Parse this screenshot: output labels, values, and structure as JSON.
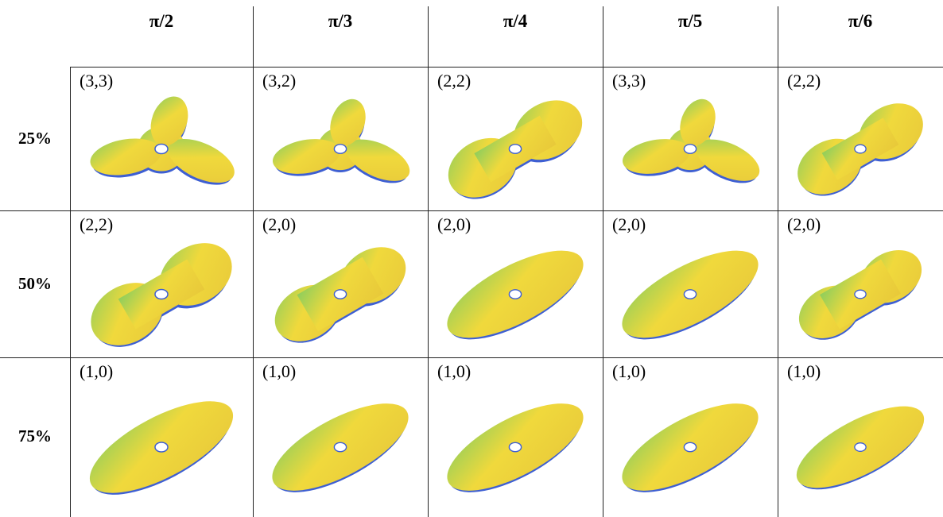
{
  "table": {
    "columns": [
      "π/2",
      "π/3",
      "π/4",
      "π/5",
      "π/6"
    ],
    "rows": [
      {
        "label": "25%",
        "cells": [
          "(3,3)",
          "(3,2)",
          "(2,2)",
          "(3,3)",
          "(2,2)"
        ]
      },
      {
        "label": "50%",
        "cells": [
          "(2,2)",
          "(2,0)",
          "(2,0)",
          "(2,0)",
          "(2,0)"
        ]
      },
      {
        "label": "75%",
        "cells": [
          "(1,0)",
          "(1,0)",
          "(1,0)",
          "(1,0)",
          "(1,0)"
        ]
      }
    ]
  }
}
